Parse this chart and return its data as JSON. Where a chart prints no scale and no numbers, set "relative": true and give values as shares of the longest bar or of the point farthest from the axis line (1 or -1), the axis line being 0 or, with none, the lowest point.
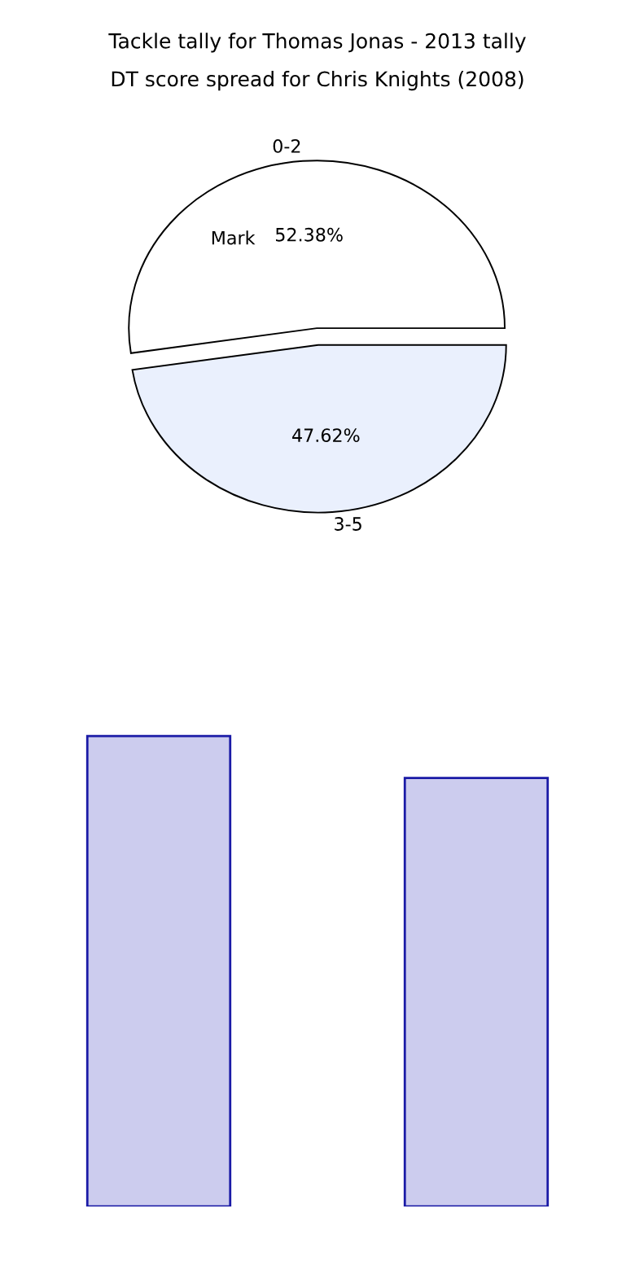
{
  "chart_data": [
    {
      "type": "pie",
      "title": "DT score spread for Chris Knights (2008)",
      "categories": [
        "0-2",
        "3-5"
      ],
      "values": [
        52.38,
        47.62
      ],
      "colors": [
        "#ffffff",
        "#eaf0fd"
      ],
      "value_labels": [
        "52.38%",
        "47.62%"
      ],
      "annotations": [
        "Mark"
      ]
    },
    {
      "type": "bar",
      "title": "Tackle tally for Thomas Jonas - 2013 tally",
      "categories": [
        null,
        null
      ],
      "relative": true,
      "series": [
        {
          "color": "#ccccee",
          "values": [
            1,
            0.911
          ]
        }
      ]
    }
  ]
}
